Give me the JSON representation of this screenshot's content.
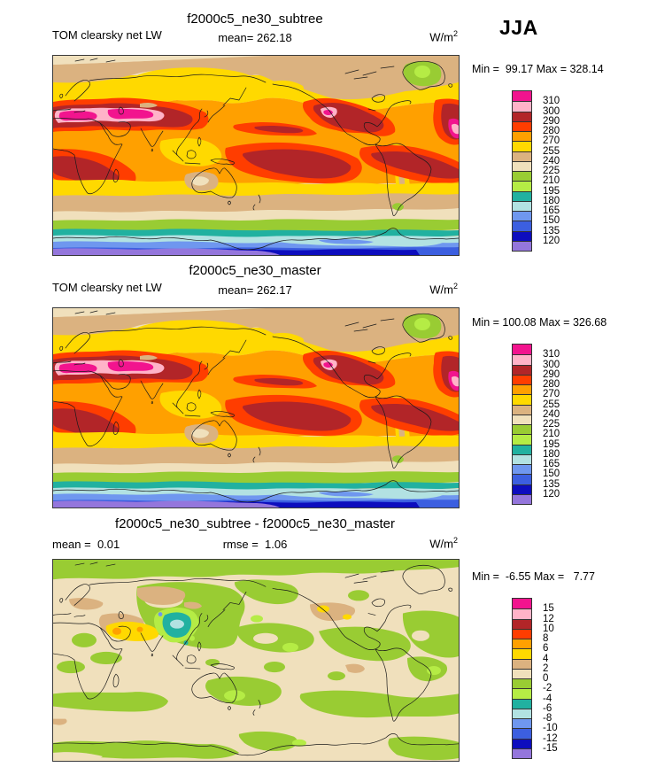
{
  "season": "JJA",
  "variable": "TOM clearsky net LW",
  "units": "W/m",
  "units_exp": "2",
  "palette_colors_top_to_bottom": [
    "#F2148E",
    "#FFB3C8",
    "#B22528",
    "#FF3D00",
    "#FFA000",
    "#FFD900",
    "#DBB280",
    "#F0E0BC",
    "#99CC33",
    "#B5EC45",
    "#21B1A0",
    "#B2E2E2",
    "#6F97EF",
    "#3C5FE0",
    "#0D0DBE",
    "#9476DC"
  ],
  "panels": [
    {
      "title": "f2000c5_ne30_subtree",
      "left_label": "TOM clearsky net LW",
      "stat_label": "mean= 262.18",
      "minmax": "Min =  99.17 Max = 328.14",
      "colorbar": {
        "labels": [
          "310",
          "300",
          "290",
          "280",
          "270",
          "255",
          "240",
          "225",
          "210",
          "195",
          "180",
          "165",
          "150",
          "135",
          "120"
        ],
        "colors": [
          "#F2148E",
          "#FFB3C8",
          "#B22528",
          "#FF3D00",
          "#FFA000",
          "#FFD900",
          "#DBB280",
          "#F0E0BC",
          "#99CC33",
          "#B5EC45",
          "#21B1A0",
          "#B2E2E2",
          "#6F97EF",
          "#3C5FE0",
          "#0D0DBE",
          "#9476DC"
        ]
      }
    },
    {
      "title": "f2000c5_ne30_master",
      "left_label": "TOM clearsky net LW",
      "stat_label": "mean= 262.17",
      "minmax": "Min = 100.08 Max = 326.68",
      "colorbar": {
        "labels": [
          "310",
          "300",
          "290",
          "280",
          "270",
          "255",
          "240",
          "225",
          "210",
          "195",
          "180",
          "165",
          "150",
          "135",
          "120"
        ],
        "colors": [
          "#F2148E",
          "#FFB3C8",
          "#B22528",
          "#FF3D00",
          "#FFA000",
          "#FFD900",
          "#DBB280",
          "#F0E0BC",
          "#99CC33",
          "#B5EC45",
          "#21B1A0",
          "#B2E2E2",
          "#6F97EF",
          "#3C5FE0",
          "#0D0DBE",
          "#9476DC"
        ]
      }
    },
    {
      "title": "f2000c5_ne30_subtree - f2000c5_ne30_master",
      "left_label": "mean =  0.01",
      "stat_label": "rmse =  1.06",
      "minmax": "Min =  -6.55 Max =   7.77",
      "colorbar": {
        "labels": [
          "15",
          "12",
          "10",
          "8",
          "6",
          "4",
          "2",
          "0",
          "-2",
          "-4",
          "-6",
          "-8",
          "-10",
          "-12",
          "-15"
        ],
        "colors": [
          "#F2148E",
          "#FFB3C8",
          "#B22528",
          "#FF3D00",
          "#FFA000",
          "#FFD900",
          "#DBB280",
          "#F0E0BC",
          "#99CC33",
          "#B5EC45",
          "#21B1A0",
          "#B2E2E2",
          "#6F97EF",
          "#3C5FE0",
          "#0D0DBE",
          "#9476DC"
        ]
      }
    }
  ],
  "chart_data": [
    {
      "type": "heatmap",
      "subtype": "global-contour-map",
      "title": "f2000c5_ne30_subtree",
      "variable": "TOM clearsky net LW",
      "season": "JJA",
      "units": "W/m^2",
      "mean": 262.18,
      "min": 99.17,
      "max": 328.14,
      "contour_levels": [
        120,
        135,
        150,
        165,
        180,
        195,
        210,
        225,
        240,
        255,
        270,
        280,
        290,
        300,
        310
      ],
      "legend_position": "right",
      "projection": "global cylindrical equidistant"
    },
    {
      "type": "heatmap",
      "subtype": "global-contour-map",
      "title": "f2000c5_ne30_master",
      "variable": "TOM clearsky net LW",
      "season": "JJA",
      "units": "W/m^2",
      "mean": 262.17,
      "min": 100.08,
      "max": 326.68,
      "contour_levels": [
        120,
        135,
        150,
        165,
        180,
        195,
        210,
        225,
        240,
        255,
        270,
        280,
        290,
        300,
        310
      ],
      "legend_position": "right",
      "projection": "global cylindrical equidistant"
    },
    {
      "type": "heatmap",
      "subtype": "global-contour-difference-map",
      "title": "f2000c5_ne30_subtree - f2000c5_ne30_master",
      "variable": "TOM clearsky net LW difference",
      "season": "JJA",
      "units": "W/m^2",
      "mean": 0.01,
      "rmse": 1.06,
      "min": -6.55,
      "max": 7.77,
      "contour_levels": [
        -15,
        -12,
        -10,
        -8,
        -6,
        -4,
        -2,
        0,
        2,
        4,
        6,
        8,
        10,
        12,
        15
      ],
      "legend_position": "right",
      "projection": "global cylindrical equidistant"
    }
  ]
}
